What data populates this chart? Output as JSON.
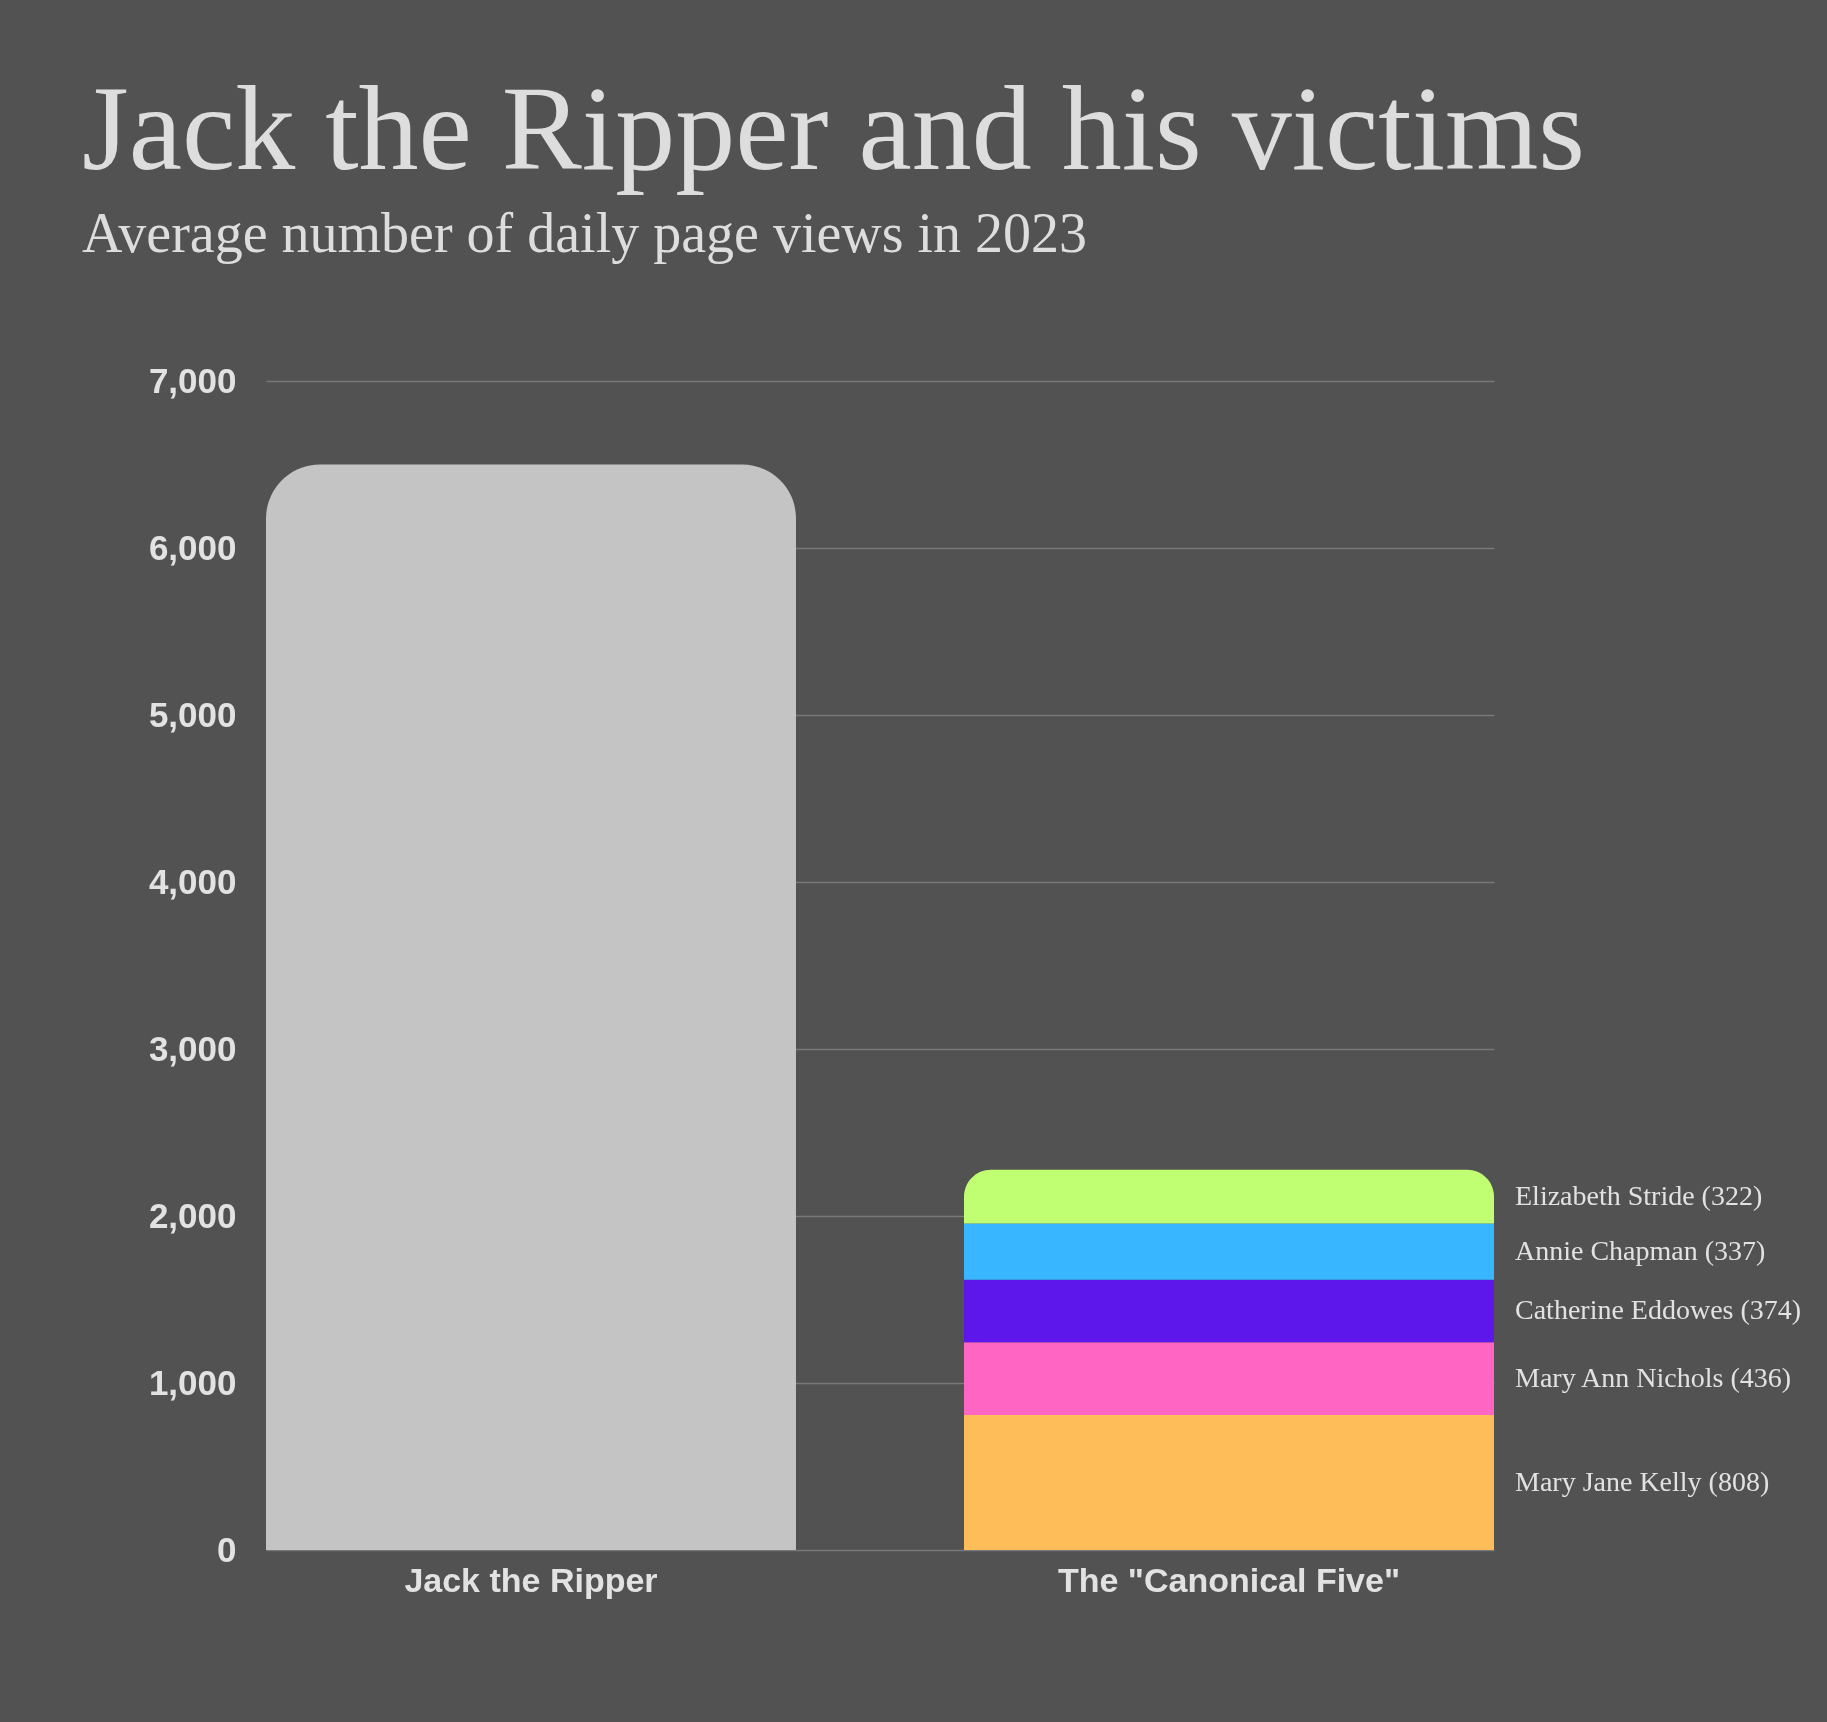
{
  "chart_data": {
    "type": "bar",
    "title": "Jack the Ripper and his victims",
    "subtitle": "Average number of daily page views in 2023",
    "categories": [
      "Jack the Ripper",
      "The \"Canonical Five\""
    ],
    "stacked": true,
    "series": [
      {
        "color": "#c4c4c4",
        "values": [
          6500,
          null
        ]
      },
      {
        "name": "Mary Jane Kelly",
        "color": "#ffbd59",
        "values": [
          null,
          808
        ],
        "value_labels": [
          null,
          "(808)"
        ]
      },
      {
        "name": "Mary Ann Nichols",
        "color": "#ff66c4",
        "values": [
          null,
          436
        ],
        "value_labels": [
          null,
          "(436)"
        ]
      },
      {
        "name": "Catherine Eddowes",
        "color": "#5e17eb",
        "values": [
          null,
          374
        ],
        "value_labels": [
          null,
          "(374)"
        ]
      },
      {
        "name": "Annie Chapman",
        "color": "#38b6ff",
        "values": [
          null,
          337
        ],
        "value_labels": [
          null,
          "(337)"
        ]
      },
      {
        "name": "Elizabeth Stride",
        "color": "#c1ff72",
        "values": [
          null,
          322
        ],
        "value_labels": [
          null,
          "(322)"
        ]
      }
    ],
    "ylim": [
      0,
      7000
    ],
    "yticks": [
      0,
      {
        "value": 1000,
        "label": "1,000"
      },
      {
        "value": 2000,
        "label": "2,000"
      },
      {
        "value": 3000,
        "label": "3,000"
      },
      {
        "value": 4000,
        "label": "4,000"
      },
      {
        "value": 5000,
        "label": "5,000"
      },
      {
        "value": 6000,
        "label": "6,000"
      },
      {
        "value": 7000,
        "label": "7,000"
      }
    ],
    "grid": "y"
  }
}
